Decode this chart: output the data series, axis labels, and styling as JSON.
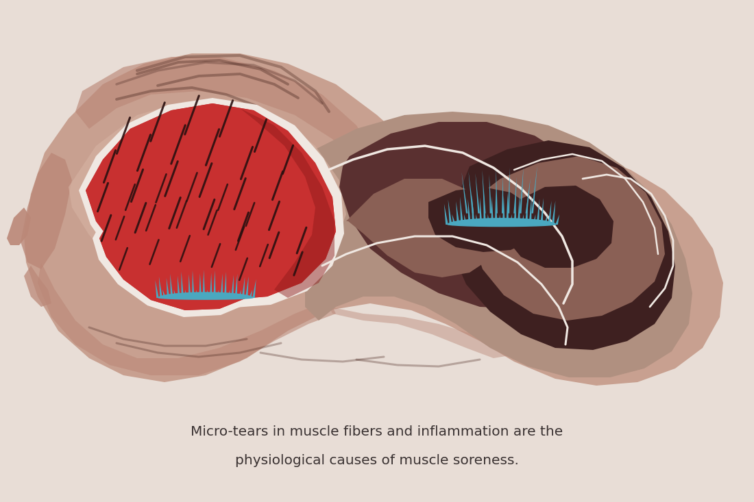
{
  "background_color": "#e8ddd6",
  "text_line1": "Micro-tears in muscle fibers and inflammation are the",
  "text_line2": "physiological causes of muscle soreness.",
  "text_color": "#3a3232",
  "text_fontsize": 14.5,
  "colors": {
    "skin_outer": "#c8a090",
    "skin_mid": "#bb8878",
    "skin_inner_light": "#d4b0a0",
    "muscle_red": "#c83030",
    "muscle_red_dark": "#8b1818",
    "muscle_red_shadow": "#7a1515",
    "muscle_fiber": "#2a1010",
    "brown_light": "#b09080",
    "brown_mid": "#8a6055",
    "brown_dark": "#5a3030",
    "brown_darkest": "#3e2020",
    "white_sep": "#f0e8e2",
    "blue": "#4aA8C0",
    "skin_stripe": "#4a2820"
  }
}
